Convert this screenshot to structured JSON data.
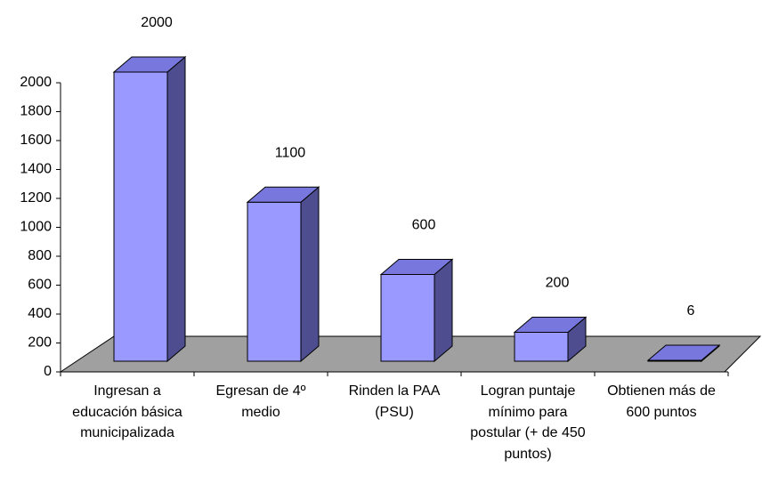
{
  "chart_data": {
    "type": "bar3d",
    "categories": [
      "Ingresan a educación básica municipalizada",
      "Egresan de 4º medio",
      "Rinden la PAA (PSU)",
      "Logran puntaje mínimo para postular (+ de 450 puntos)",
      "Obtienen más de 600 puntos"
    ],
    "values": [
      2000,
      1100,
      600,
      200,
      6
    ],
    "color": "#9999ff",
    "ylim": [
      0,
      2000
    ],
    "yticks": [
      0,
      200,
      400,
      600,
      800,
      1000,
      1200,
      1400,
      1600,
      1800,
      2000
    ]
  }
}
